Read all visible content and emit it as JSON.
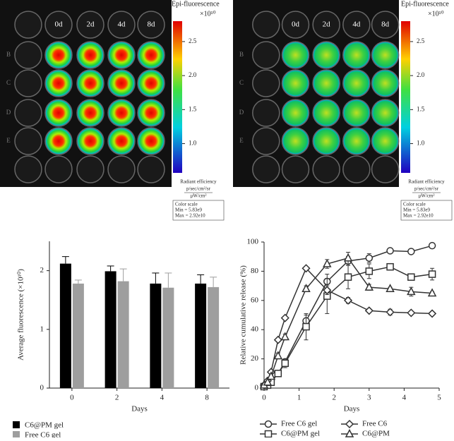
{
  "images": [
    {
      "title": "Epi-fluorescence",
      "scale_unit": "×10¹⁰",
      "clim": [
        0.57,
        2.8
      ],
      "colorbar_ticks": [
        2.5,
        {
          "value": 2,
          "label": "2.0"
        },
        1.5,
        {
          "value": 1,
          "label": "1.0"
        }
      ],
      "columns": [
        "0d",
        "2d",
        "4d",
        "8d"
      ],
      "row_labels": [
        "B",
        "C",
        "D",
        "E"
      ],
      "units": [
        "Radiant efficiency",
        "p/sec/cm²/sr",
        "μW/cm²"
      ],
      "color_scale": [
        "Color scale",
        "Min = 5.83e9",
        "Max = 2.92e10"
      ]
    },
    {
      "title": "Epi-fluorescence",
      "scale_unit": "×10¹⁰",
      "clim": [
        0.57,
        2.8
      ],
      "colorbar_ticks": [
        2.5,
        {
          "value": 2,
          "label": "2.0"
        },
        1.5,
        {
          "value": 1,
          "label": "1.0"
        }
      ],
      "columns": [
        "0d",
        "2d",
        "4d",
        "8d"
      ],
      "row_labels": [
        "B",
        "C",
        "D",
        "E"
      ],
      "units": [
        "Radiant efficiency",
        "p/sec/cm²/sr",
        "μW/cm²"
      ],
      "color_scale": [
        "Color scale",
        "Min = 5.83e9",
        "Max = 2.92e10"
      ]
    }
  ],
  "chart_data": [
    {
      "type": "bar",
      "y_label": "Average fluorescence (×10¹⁰)",
      "x_label": "Days",
      "categories": [
        "0",
        "2",
        "4",
        "8"
      ],
      "ylim": [
        0,
        2.5
      ],
      "yticks": [
        0,
        1,
        2
      ],
      "series": [
        {
          "name": "C6@PM gel",
          "color": "#000000",
          "values": [
            2.12,
            1.99,
            1.78,
            1.78
          ],
          "errors": [
            0.12,
            0.09,
            0.18,
            0.15
          ]
        },
        {
          "name": "Free C6 gel",
          "color": "#9e9e9e",
          "values": [
            1.78,
            1.82,
            1.71,
            1.72
          ],
          "errors": [
            0.06,
            0.21,
            0.25,
            0.17
          ]
        }
      ]
    },
    {
      "type": "line",
      "y_label": "Relative cumulative release (%)",
      "x_label": "Days",
      "x": [
        0,
        0.1,
        0.2,
        0.4,
        0.6,
        1.2,
        1.8,
        2.4,
        3,
        3.6,
        4.2,
        4.8
      ],
      "xlim": [
        0,
        5
      ],
      "xticks": [
        0,
        1,
        2,
        3,
        4,
        5
      ],
      "ylim": [
        0,
        100
      ],
      "yticks": [
        0,
        20,
        40,
        60,
        80,
        100
      ],
      "series": [
        {
          "name": "Free C6 gel",
          "marker": "circle",
          "color": "#333333",
          "values": [
            1,
            3,
            5,
            10,
            18,
            46,
            73,
            87,
            89,
            94,
            93.5,
            97.5
          ],
          "errors": [
            0,
            0,
            0,
            1,
            2,
            4,
            5,
            3,
            3,
            1,
            1,
            1
          ]
        },
        {
          "name": "C6@PM gel",
          "marker": "square",
          "color": "#333333",
          "values": [
            1,
            2,
            4,
            10,
            17,
            42,
            63,
            76,
            80,
            83,
            76,
            78
          ],
          "errors": [
            0,
            0,
            0,
            1,
            3,
            9,
            12,
            8,
            5,
            2,
            2,
            4
          ]
        },
        {
          "name": "Free C6",
          "marker": "diamond",
          "color": "#333333",
          "values": [
            2,
            5,
            11,
            33,
            48,
            82,
            67,
            60,
            53,
            52,
            51.5,
            51
          ],
          "errors": [
            0,
            0,
            1,
            1,
            1,
            1,
            3,
            2,
            1,
            2,
            1,
            1
          ]
        },
        {
          "name": "C6@PM",
          "marker": "triangle",
          "color": "#333333",
          "values": [
            2,
            4,
            8,
            22,
            35,
            68,
            85,
            89,
            69,
            68,
            66,
            65
          ],
          "errors": [
            0,
            0,
            1,
            2,
            2,
            2,
            3,
            4,
            2,
            1,
            3,
            1
          ]
        }
      ]
    }
  ]
}
